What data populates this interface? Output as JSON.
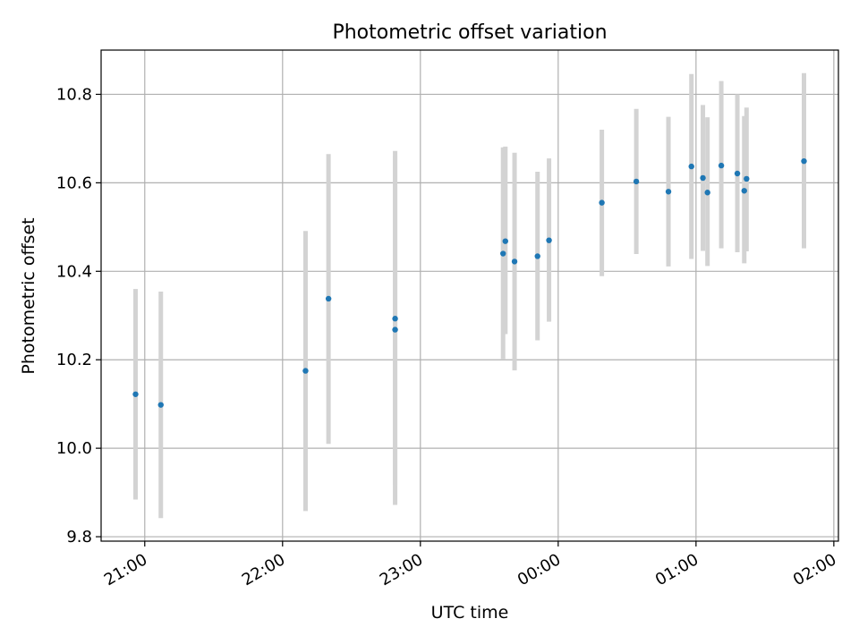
{
  "chart_data": {
    "type": "scatter",
    "title": "Photometric offset variation",
    "xlabel": "UTC time",
    "ylabel": "Photometric offset",
    "x_unit": "minutes",
    "xlim": [
      "20:41",
      "26:02"
    ],
    "ylim": [
      9.79,
      10.9
    ],
    "grid": true,
    "x_ticks": [
      {
        "value": "21:00",
        "label": "21:00"
      },
      {
        "value": "22:00",
        "label": "22:00"
      },
      {
        "value": "23:00",
        "label": "23:00"
      },
      {
        "value": "24:00",
        "label": "00:00"
      },
      {
        "value": "25:00",
        "label": "01:00"
      },
      {
        "value": "26:00",
        "label": "02:00"
      }
    ],
    "y_ticks": [
      {
        "value": 9.8,
        "label": "9.8"
      },
      {
        "value": 10.0,
        "label": "10.0"
      },
      {
        "value": 10.2,
        "label": "10.2"
      },
      {
        "value": 10.4,
        "label": "10.4"
      },
      {
        "value": 10.6,
        "label": "10.6"
      },
      {
        "value": 10.8,
        "label": "10.8"
      }
    ],
    "marker_color": "#1f77b4",
    "errorbar_color": "#d3d3d3",
    "points": [
      {
        "time": "20:56",
        "y": 10.122,
        "ylow": 9.884,
        "yhigh": 10.36
      },
      {
        "time": "21:07",
        "y": 10.098,
        "ylow": 9.842,
        "yhigh": 10.354
      },
      {
        "time": "22:10",
        "y": 10.175,
        "ylow": 9.858,
        "yhigh": 10.491
      },
      {
        "time": "22:20",
        "y": 10.338,
        "ylow": 10.01,
        "yhigh": 10.665
      },
      {
        "time": "22:49",
        "y": 10.293,
        "ylow": 9.915,
        "yhigh": 10.672
      },
      {
        "time": "22:49",
        "y": 10.268,
        "ylow": 9.872,
        "yhigh": 10.662
      },
      {
        "time": "23:36",
        "y": 10.44,
        "ylow": 10.202,
        "yhigh": 10.68
      },
      {
        "time": "23:37",
        "y": 10.468,
        "ylow": 10.258,
        "yhigh": 10.682
      },
      {
        "time": "23:41",
        "y": 10.422,
        "ylow": 10.176,
        "yhigh": 10.668
      },
      {
        "time": "23:51",
        "y": 10.434,
        "ylow": 10.244,
        "yhigh": 10.625
      },
      {
        "time": "23:56",
        "y": 10.47,
        "ylow": 10.286,
        "yhigh": 10.655
      },
      {
        "time": "24:19",
        "y": 10.555,
        "ylow": 10.389,
        "yhigh": 10.72
      },
      {
        "time": "24:34",
        "y": 10.603,
        "ylow": 10.439,
        "yhigh": 10.767
      },
      {
        "time": "24:48",
        "y": 10.58,
        "ylow": 10.411,
        "yhigh": 10.749
      },
      {
        "time": "24:58",
        "y": 10.637,
        "ylow": 10.428,
        "yhigh": 10.846
      },
      {
        "time": "25:03",
        "y": 10.611,
        "ylow": 10.446,
        "yhigh": 10.776
      },
      {
        "time": "25:05",
        "y": 10.578,
        "ylow": 10.412,
        "yhigh": 10.748
      },
      {
        "time": "25:11",
        "y": 10.639,
        "ylow": 10.452,
        "yhigh": 10.83
      },
      {
        "time": "25:18",
        "y": 10.621,
        "ylow": 10.443,
        "yhigh": 10.8
      },
      {
        "time": "25:21",
        "y": 10.582,
        "ylow": 10.418,
        "yhigh": 10.751
      },
      {
        "time": "25:22",
        "y": 10.609,
        "ylow": 10.445,
        "yhigh": 10.77
      },
      {
        "time": "25:47",
        "y": 10.649,
        "ylow": 10.452,
        "yhigh": 10.848
      }
    ]
  }
}
